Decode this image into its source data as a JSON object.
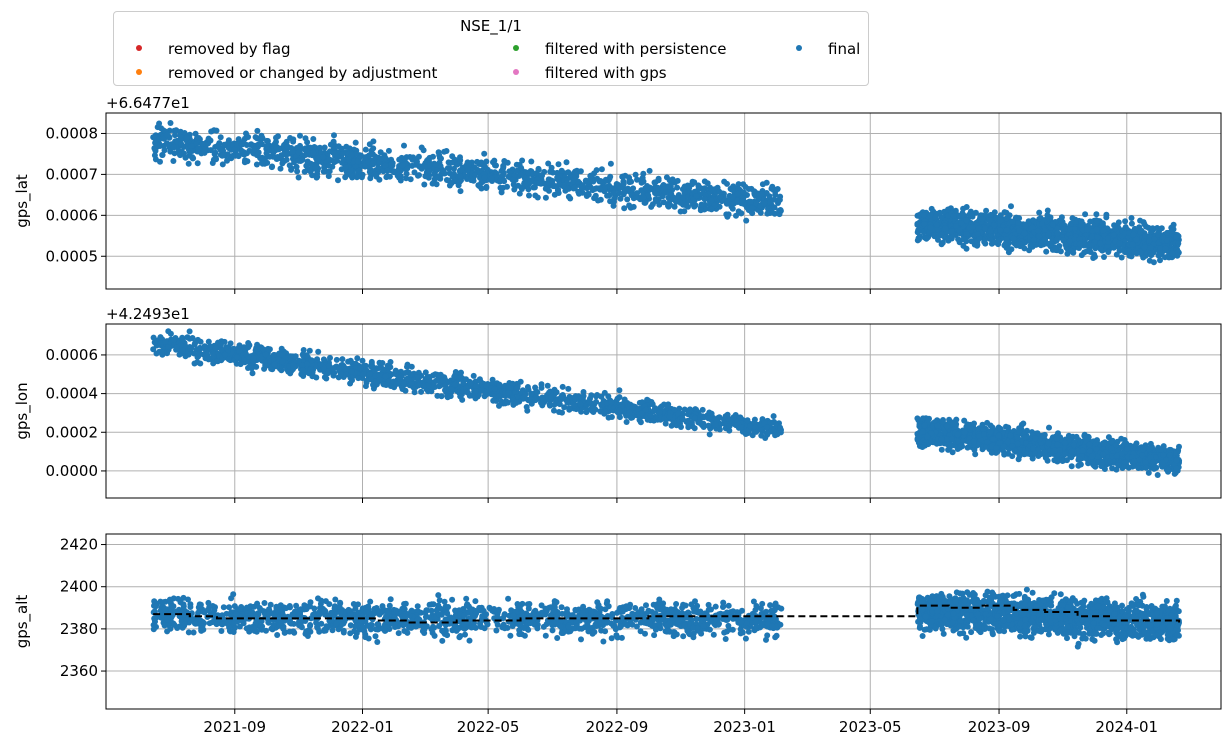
{
  "legend": {
    "title": "NSE_1/1",
    "items": [
      {
        "label": "removed by flag",
        "color": "#d62728"
      },
      {
        "label": "removed or changed by adjustment",
        "color": "#ff7f0e"
      },
      {
        "label": "filtered with persistence",
        "color": "#2ca02c"
      },
      {
        "label": "filtered with gps",
        "color": "#e377c2"
      },
      {
        "label": "final",
        "color": "#1f77b4"
      }
    ]
  },
  "chart_data": [
    {
      "type": "scatter",
      "ylabel": "gps_lat",
      "offset_label": "+6.6477e1",
      "yticks": [
        "0.0005",
        "0.0006",
        "0.0007",
        "0.0008"
      ],
      "ylim": [
        0.00042,
        0.00085
      ],
      "grid": true,
      "series": [
        {
          "name": "final",
          "color": "#1f77b4",
          "segments": [
            {
              "x_start": "2021-06-15",
              "x_end": "2023-02-05",
              "y_start": 0.00078,
              "y_end": 0.00063,
              "spread": 4e-05
            },
            {
              "x_start": "2023-06-15",
              "x_end": "2024-02-20",
              "y_start": 0.00058,
              "y_end": 0.00053,
              "spread": 4e-05
            }
          ]
        }
      ]
    },
    {
      "type": "scatter",
      "ylabel": "gps_lon",
      "offset_label": "+4.2493e1",
      "yticks": [
        "0.0000",
        "0.0002",
        "0.0004",
        "0.0006"
      ],
      "ylim": [
        -0.00014,
        0.00076
      ],
      "grid": true,
      "series": [
        {
          "name": "final",
          "color": "#1f77b4",
          "segments": [
            {
              "x_start": "2021-06-15",
              "x_end": "2023-02-05",
              "y_start": 0.00066,
              "y_end": 0.00021,
              "spread": 6e-05
            },
            {
              "x_start": "2023-06-15",
              "x_end": "2024-02-20",
              "y_start": 0.00021,
              "y_end": 5e-05,
              "spread": 7e-05
            }
          ]
        }
      ]
    },
    {
      "type": "scatter",
      "ylabel": "gps_alt",
      "offset_label": "",
      "yticks": [
        "2360",
        "2380",
        "2400",
        "2420"
      ],
      "ylim": [
        2342,
        2425
      ],
      "grid": true,
      "series": [
        {
          "name": "final",
          "color": "#1f77b4",
          "segments": [
            {
              "x_start": "2021-06-15",
              "x_end": "2023-02-05",
              "y_start": 2386,
              "y_end": 2384,
              "spread": 8
            },
            {
              "x_start": "2023-06-15",
              "x_end": "2024-02-20",
              "y_start": 2389,
              "y_end": 2383,
              "spread": 9
            }
          ]
        },
        {
          "name": "",
          "color": "#000000",
          "style": "dashed",
          "x": [
            "2021-06-15",
            "2021-07-20",
            "2021-08-15",
            "2021-12-01",
            "2022-01-15",
            "2022-02-15",
            "2022-04-01",
            "2022-06-01",
            "2022-10-01",
            "2023-06-15",
            "2023-07-15",
            "2023-08-15",
            "2023-09-15",
            "2023-10-15",
            "2023-11-15",
            "2023-12-15",
            "2024-02-20"
          ],
          "y": [
            2387,
            2386,
            2385,
            2385,
            2384,
            2383,
            2384,
            2385,
            2386,
            2391,
            2390,
            2391,
            2389,
            2388,
            2386,
            2384,
            2383
          ]
        }
      ]
    }
  ],
  "x_axis": {
    "xlim": [
      "2021-05-01",
      "2024-03-31"
    ],
    "ticks": [
      {
        "date": "2021-09-01",
        "label": "2021-09"
      },
      {
        "date": "2022-01-01",
        "label": "2022-01"
      },
      {
        "date": "2022-05-01",
        "label": "2022-05"
      },
      {
        "date": "2022-09-01",
        "label": "2022-09"
      },
      {
        "date": "2023-01-01",
        "label": "2023-01"
      },
      {
        "date": "2023-05-01",
        "label": "2023-05"
      },
      {
        "date": "2023-09-01",
        "label": "2023-09"
      },
      {
        "date": "2024-01-01",
        "label": "2024-01"
      }
    ]
  }
}
